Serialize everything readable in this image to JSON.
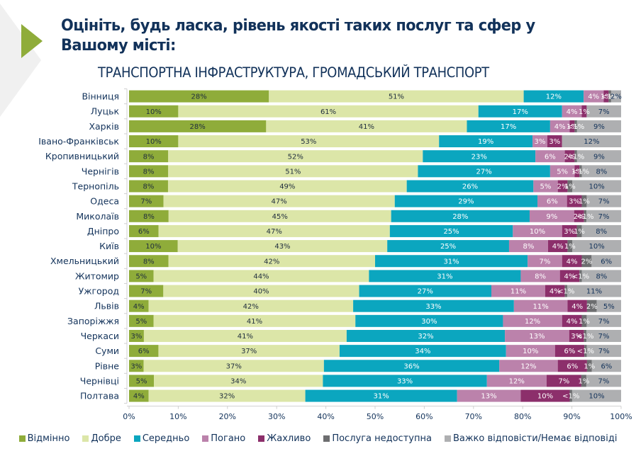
{
  "slide": {
    "title": "Оцініть, будь ласка, рівень якості таких послуг та сфер у Вашому місті:",
    "subtitle": "ТРАНСПОРТНА ІНФРАСТРУКТУРА, ГРОМАДСЬКИЙ ТРАНСПОРТ",
    "accent_color": "#8fac3a"
  },
  "chart_data": {
    "type": "bar",
    "orientation": "horizontal",
    "stacked": "percent",
    "title": "ТРАНСПОРТНА ІНФРАСТРУКТУРА, ГРОМАДСЬКИЙ ТРАНСПОРТ",
    "xlabel": "",
    "ylabel": "",
    "xlim": [
      0,
      100
    ],
    "x_ticks": [
      "0%",
      "10%",
      "20%",
      "30%",
      "40%",
      "50%",
      "60%",
      "70%",
      "80%",
      "90%",
      "100%"
    ],
    "grid": false,
    "legend_position": "bottom",
    "categories": [
      "Вінниця",
      "Луцьк",
      "Харків",
      "Івано-Франківськ",
      "Кропивницький",
      "Чернігів",
      "Тернопіль",
      "Одеса",
      "Миколаїв",
      "Дніпро",
      "Київ",
      "Хмельницький",
      "Житомир",
      "Ужгород",
      "Львів",
      "Запоріжжя",
      "Черкаси",
      "Суми",
      "Рівне",
      "Чернівці",
      "Полтава"
    ],
    "series": [
      {
        "name": "Відмінно",
        "color": "#8fac3a",
        "label_color": "#1f2d3d",
        "values": [
          28,
          10,
          28,
          10,
          8,
          8,
          8,
          7,
          8,
          6,
          10,
          8,
          5,
          7,
          4,
          5,
          3,
          6,
          3,
          5,
          4
        ],
        "labels": [
          "28%",
          "10%",
          "28%",
          "10%",
          "8%",
          "8%",
          "8%",
          "7%",
          "8%",
          "6%",
          "10%",
          "8%",
          "5%",
          "7%",
          "4%",
          "5%",
          "3%",
          "6%",
          "3%",
          "5%",
          "4%"
        ]
      },
      {
        "name": "Добре",
        "color": "#dce6a8",
        "label_color": "#1f2d3d",
        "values": [
          51,
          61,
          41,
          53,
          52,
          51,
          49,
          47,
          45,
          47,
          43,
          42,
          44,
          40,
          42,
          41,
          41,
          37,
          37,
          34,
          32
        ],
        "labels": [
          "51%",
          "61%",
          "41%",
          "53%",
          "52%",
          "51%",
          "49%",
          "47%",
          "45%",
          "47%",
          "43%",
          "42%",
          "44%",
          "40%",
          "42%",
          "41%",
          "41%",
          "37%",
          "37%",
          "34%",
          "32%"
        ]
      },
      {
        "name": "Середньо",
        "color": "#0ba6bf",
        "label_color": "#ffffff",
        "values": [
          12,
          17,
          17,
          19,
          23,
          27,
          26,
          29,
          28,
          25,
          25,
          31,
          31,
          27,
          33,
          30,
          32,
          34,
          36,
          33,
          31
        ],
        "labels": [
          "12%",
          "17%",
          "17%",
          "19%",
          "23%",
          "27%",
          "26%",
          "29%",
          "28%",
          "25%",
          "25%",
          "31%",
          "31%",
          "27%",
          "33%",
          "30%",
          "32%",
          "34%",
          "36%",
          "33%",
          "31%"
        ]
      },
      {
        "name": "Погано",
        "color": "#bb82ab",
        "label_color": "#ffffff",
        "values": [
          4,
          4,
          4,
          3,
          6,
          5,
          5,
          6,
          9,
          10,
          8,
          7,
          8,
          11,
          11,
          12,
          13,
          10,
          12,
          12,
          13
        ],
        "labels": [
          "4%",
          "4%",
          "4%",
          "3%",
          "6%",
          "5%",
          "5%",
          "6%",
          "9%",
          "10%",
          "8%",
          "7%",
          "8%",
          "11%",
          "11%",
          "12%",
          "13%",
          "10%",
          "12%",
          "12%",
          "13%"
        ]
      },
      {
        "name": "Жахливо",
        "color": "#8c2f6b",
        "label_color": "#ffffff",
        "values": [
          1,
          1,
          1,
          3,
          2,
          1,
          2,
          3,
          2,
          3,
          4,
          4,
          4,
          4,
          4,
          4,
          3,
          6,
          6,
          7,
          10
        ],
        "labels": [
          "1%",
          "1%",
          "1%",
          "3%",
          "2%",
          "1%",
          "2%",
          "3%",
          "2%",
          "3%",
          "4%",
          "4%",
          "4%",
          "4%",
          "4%",
          "4%",
          "3%",
          "6%",
          "6%",
          "7%",
          "10%"
        ]
      },
      {
        "name": "Послуга недоступна",
        "color": "#6d6e70",
        "label_color": "#ffffff",
        "values": [
          0.5,
          0,
          0.5,
          0,
          0.5,
          0.5,
          1,
          1,
          0.5,
          1,
          1,
          2,
          0.5,
          0.5,
          2,
          1,
          0.5,
          0.5,
          1,
          1,
          0.5
        ],
        "labels": [
          "<1%",
          "",
          "<1%",
          "",
          "<1%",
          "<1%",
          "1%",
          "1%",
          "<1%",
          "1%",
          "1%",
          "2%",
          "<1%",
          "<1%",
          "2%",
          "1%",
          "<1%",
          "<1%",
          "1%",
          "1%",
          "<1%"
        ]
      },
      {
        "name": "Важко відповісти/Немає відповіді",
        "color": "#aeafb1",
        "label_color": "#12325a",
        "values": [
          2,
          7,
          9,
          12,
          9,
          8,
          10,
          7,
          7,
          8,
          10,
          6,
          8,
          11,
          5,
          7,
          7,
          7,
          6,
          7,
          10
        ],
        "labels": [
          "2%",
          "7%",
          "9%",
          "12%",
          "9%",
          "8%",
          "10%",
          "7%",
          "7%",
          "8%",
          "10%",
          "6%",
          "8%",
          "11%",
          "5%",
          "7%",
          "7%",
          "7%",
          "6%",
          "7%",
          "10%"
        ]
      }
    ]
  }
}
